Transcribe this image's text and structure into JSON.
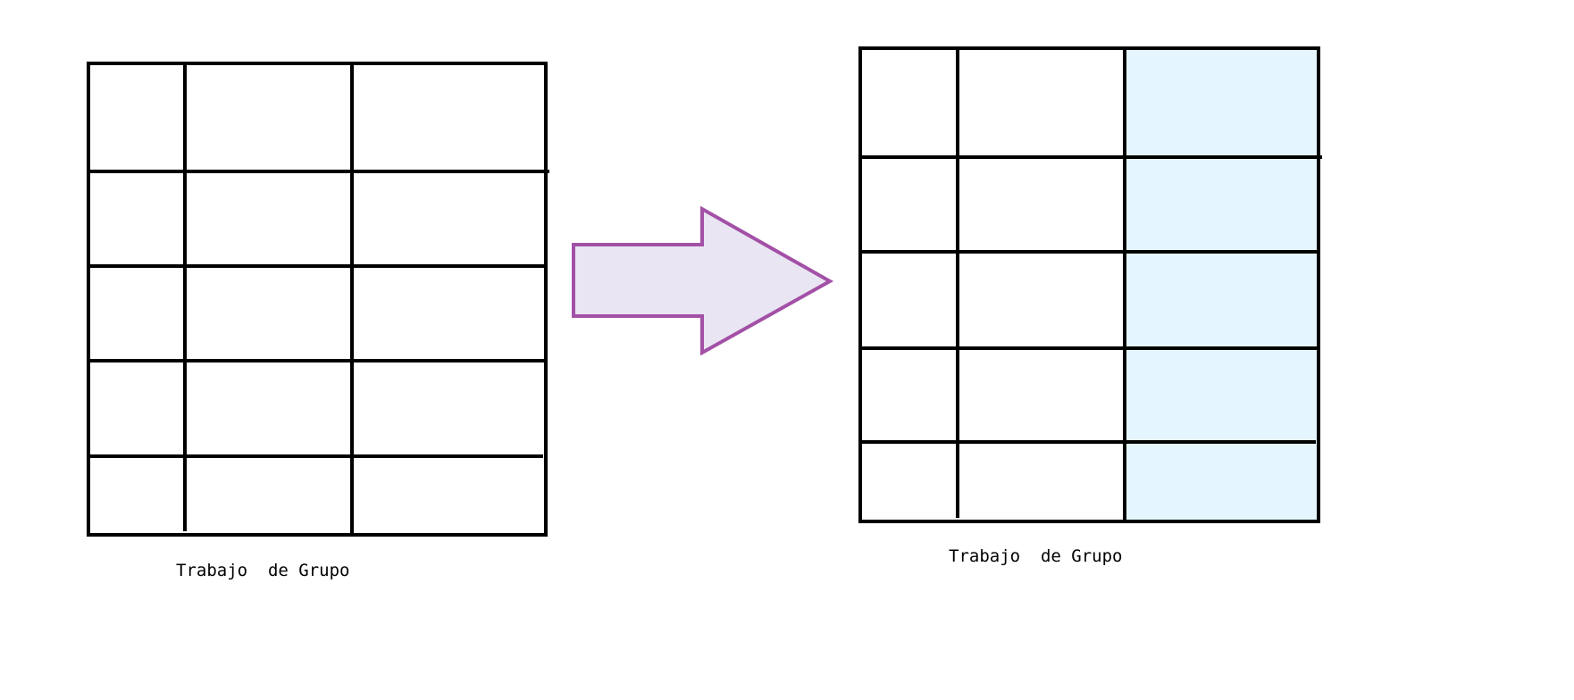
{
  "diagram": {
    "left_table": {
      "caption": "Trabajo  de Grupo",
      "rows": 5,
      "columns": 3,
      "highlighted_column": null
    },
    "arrow": {
      "direction": "right",
      "fill_color": "#e9e5f3",
      "stroke_color": "#a350a7"
    },
    "right_table": {
      "caption": "Trabajo  de Grupo",
      "rows": 5,
      "columns": 3,
      "highlighted_column": 3,
      "highlight_color": "#e5f5fd"
    },
    "line_color": "#000000"
  }
}
